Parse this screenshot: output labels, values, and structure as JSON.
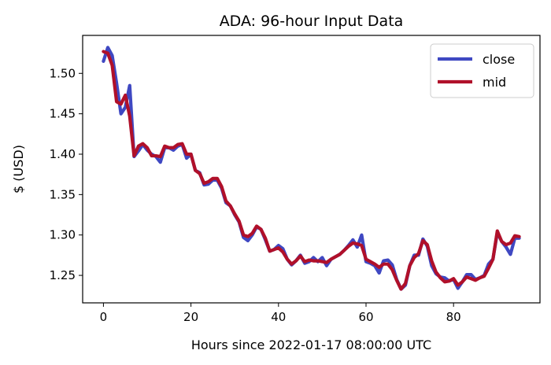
{
  "chart_data": {
    "type": "line",
    "title": "ADA: 96-hour Input Data",
    "xlabel": "Hours since 2022-01-17 08:00:00 UTC",
    "ylabel": "$ (USD)",
    "xlim": [
      -4.75,
      99.75
    ],
    "ylim": [
      1.216,
      1.547
    ],
    "xticks": [
      0,
      20,
      40,
      60,
      80
    ],
    "yticks": [
      1.25,
      1.3,
      1.35,
      1.4,
      1.45,
      1.5
    ],
    "ytick_labels": [
      "1.25",
      "1.30",
      "1.35",
      "1.40",
      "1.45",
      "1.50"
    ],
    "grid": false,
    "legend": "top-right",
    "series": [
      {
        "name": "close",
        "color": "#3f48c2",
        "values": [
          1.515,
          1.532,
          1.522,
          1.488,
          1.45,
          1.458,
          1.485,
          1.397,
          1.404,
          1.412,
          1.405,
          1.4,
          1.397,
          1.39,
          1.408,
          1.408,
          1.405,
          1.41,
          1.412,
          1.395,
          1.4,
          1.38,
          1.377,
          1.362,
          1.363,
          1.368,
          1.368,
          1.358,
          1.34,
          1.336,
          1.325,
          1.316,
          1.297,
          1.293,
          1.3,
          1.31,
          1.307,
          1.294,
          1.28,
          1.282,
          1.287,
          1.283,
          1.27,
          1.263,
          1.268,
          1.275,
          1.265,
          1.267,
          1.272,
          1.267,
          1.272,
          1.262,
          1.27,
          1.273,
          1.276,
          1.281,
          1.287,
          1.294,
          1.285,
          1.3,
          1.267,
          1.265,
          1.262,
          1.253,
          1.268,
          1.269,
          1.263,
          1.245,
          1.233,
          1.238,
          1.262,
          1.275,
          1.275,
          1.295,
          1.286,
          1.262,
          1.252,
          1.248,
          1.247,
          1.243,
          1.245,
          1.234,
          1.242,
          1.251,
          1.251,
          1.245,
          1.247,
          1.25,
          1.264,
          1.27,
          1.303,
          1.292,
          1.285,
          1.276,
          1.296,
          1.296
        ]
      },
      {
        "name": "mid",
        "color": "#b0102a",
        "values": [
          1.527,
          1.525,
          1.51,
          1.465,
          1.462,
          1.473,
          1.447,
          1.398,
          1.41,
          1.413,
          1.408,
          1.398,
          1.398,
          1.397,
          1.41,
          1.408,
          1.408,
          1.412,
          1.413,
          1.4,
          1.4,
          1.38,
          1.376,
          1.364,
          1.366,
          1.37,
          1.37,
          1.36,
          1.342,
          1.336,
          1.326,
          1.317,
          1.3,
          1.298,
          1.302,
          1.311,
          1.307,
          1.296,
          1.28,
          1.282,
          1.284,
          1.279,
          1.27,
          1.264,
          1.268,
          1.274,
          1.267,
          1.269,
          1.268,
          1.268,
          1.267,
          1.266,
          1.27,
          1.273,
          1.276,
          1.281,
          1.286,
          1.29,
          1.289,
          1.287,
          1.27,
          1.267,
          1.264,
          1.26,
          1.264,
          1.264,
          1.257,
          1.244,
          1.233,
          1.24,
          1.262,
          1.272,
          1.277,
          1.293,
          1.288,
          1.268,
          1.254,
          1.247,
          1.242,
          1.243,
          1.246,
          1.238,
          1.242,
          1.248,
          1.246,
          1.244,
          1.247,
          1.249,
          1.259,
          1.27,
          1.305,
          1.292,
          1.288,
          1.29,
          1.299,
          1.298
        ]
      }
    ]
  }
}
